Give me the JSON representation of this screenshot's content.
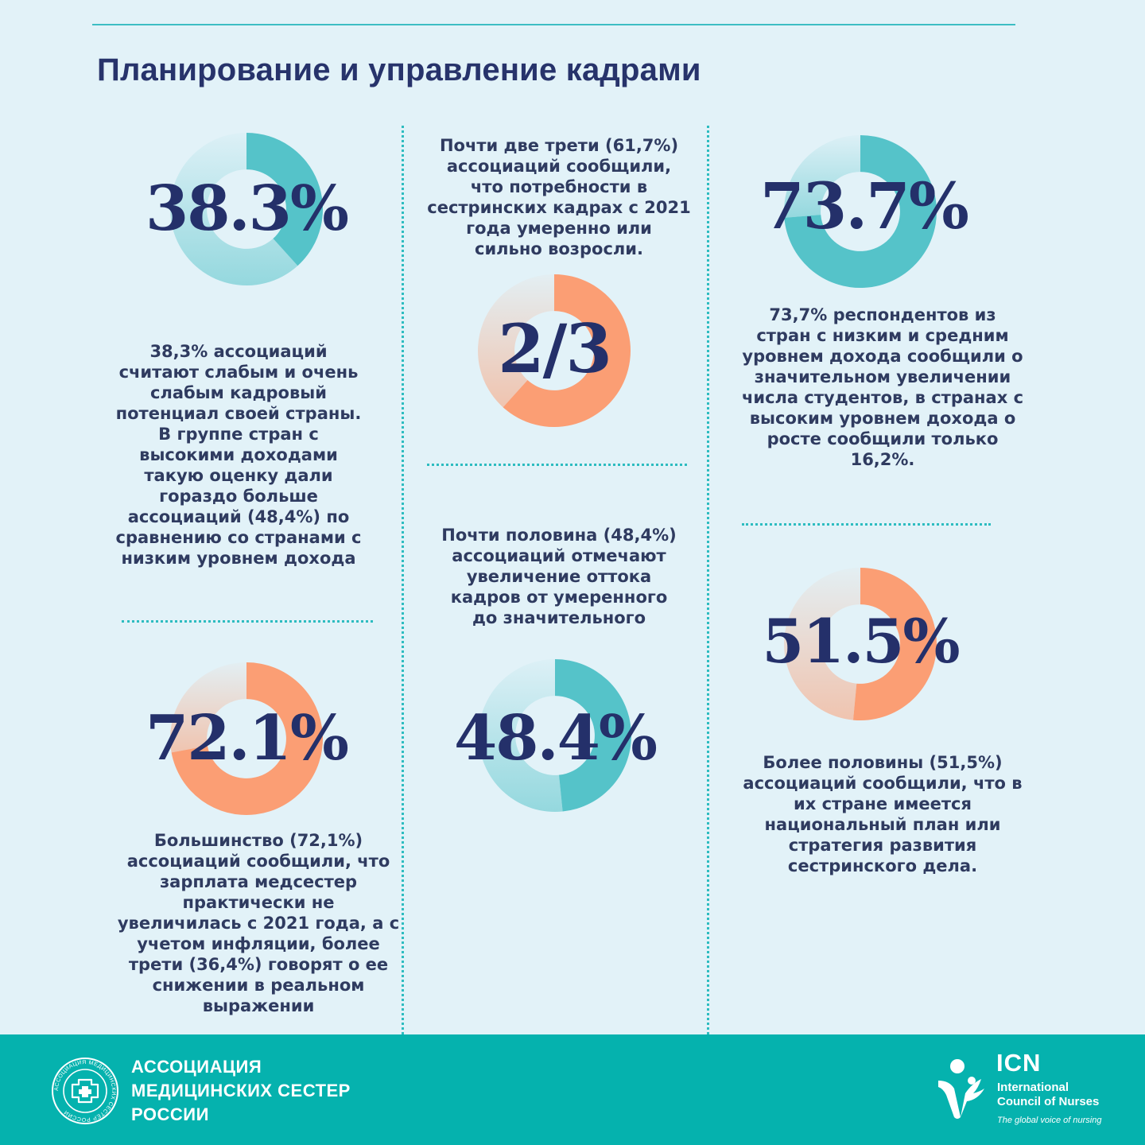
{
  "title": "Планирование и управление кадрами",
  "colors": {
    "background": "#e2f2f8",
    "teal": "#55c3c9",
    "orange": "#fb9e74",
    "navy": "#24306a",
    "footer": "#05b2ae"
  },
  "stats": {
    "weak_potential": {
      "value_text": "38.3%",
      "fraction": 0.383,
      "color": "teal",
      "caption": "38,3% ассоциаций\nсчитают слабым и очень\nслабым кадровый\nпотенциал своей страны.\nВ группе стран с\nвысокими доходами\nтакую оценку дали\nгораздо больше\nассоциаций (48,4%) по\nсравнению со странами с\nнизким уровнем дохода"
    },
    "salary": {
      "value_text": "72.1%",
      "fraction": 0.721,
      "color": "orange",
      "caption": "Большинство (72,1%)\nассоциаций сообщили, что\nзарплата медсестер\nпрактически не\nувеличилась с 2021 года, а с\nучетом инфляции, более\nтрети (36,4%) говорят о ее\nснижении в реальном\nвыражении"
    },
    "two_thirds": {
      "value_text": "2/3",
      "fraction": 0.617,
      "color": "orange",
      "caption": "Почти две трети (61,7%)\nассоциаций сообщили,\nчто потребности в\nсестринских кадрах с 2021\nгода умеренно или\nсильно возросли."
    },
    "outflow": {
      "value_text": "48.4%",
      "fraction": 0.484,
      "color": "teal",
      "caption": "Почти половина (48,4%)\nассоциаций отмечают\nувеличение оттока\nкадров от умеренного\nдо значительного"
    },
    "students": {
      "value_text": "73.7%",
      "fraction": 0.737,
      "color": "teal",
      "caption": "73,7% респондентов из\nстран с низким и средним\nуровнем дохода сообщили о\nзначительном увеличении\nчисла студентов,  в странах с\nвысоким уровнем дохода  о\nросте сообщили только\n16,2%."
    },
    "national_plan": {
      "value_text": "51.5%",
      "fraction": 0.515,
      "color": "orange",
      "caption": "Более половины (51,5%)\nассоциаций сообщили, что в\nих стране имеется\nнациональный план или\nстратегия развития\nсестринского дела."
    }
  },
  "footer": {
    "association_name": "АССОЦИАЦИЯ\nМЕДИЦИНСКИХ СЕСТЕР\nРОССИИ",
    "association_seal_text": "АССОЦИАЦИЯ МЕДИЦИНСКИХ СЕСТЕР РОССИИ",
    "icn_abbr": "ICN",
    "icn_name": "International\nCouncil of Nurses",
    "icn_tagline": "The global voice of nursing"
  }
}
